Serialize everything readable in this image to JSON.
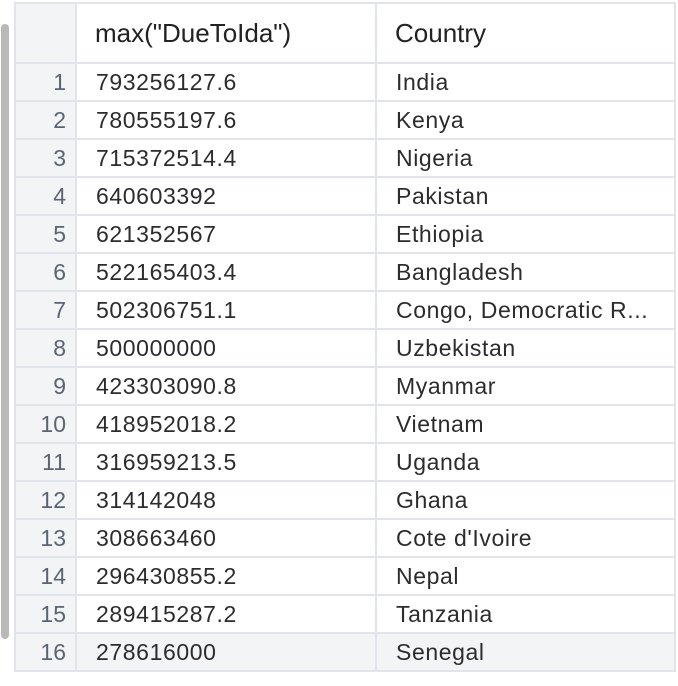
{
  "table": {
    "columns": [
      "",
      "max(\"DueToIda\")",
      "Country"
    ],
    "rows": [
      {
        "index": "1",
        "due": "793256127.6",
        "country": "India"
      },
      {
        "index": "2",
        "due": "780555197.6",
        "country": "Kenya"
      },
      {
        "index": "3",
        "due": "715372514.4",
        "country": "Nigeria"
      },
      {
        "index": "4",
        "due": "640603392",
        "country": "Pakistan"
      },
      {
        "index": "5",
        "due": "621352567",
        "country": "Ethiopia"
      },
      {
        "index": "6",
        "due": "522165403.4",
        "country": "Bangladesh"
      },
      {
        "index": "7",
        "due": "502306751.1",
        "country": "Congo, Democratic R..."
      },
      {
        "index": "8",
        "due": "500000000",
        "country": "Uzbekistan"
      },
      {
        "index": "9",
        "due": "423303090.8",
        "country": "Myanmar"
      },
      {
        "index": "10",
        "due": "418952018.2",
        "country": "Vietnam"
      },
      {
        "index": "11",
        "due": "316959213.5",
        "country": "Uganda"
      },
      {
        "index": "12",
        "due": "314142048",
        "country": "Ghana"
      },
      {
        "index": "13",
        "due": "308663460",
        "country": "Cote d'Ivoire"
      },
      {
        "index": "14",
        "due": "296430855.2",
        "country": "Nepal"
      },
      {
        "index": "15",
        "due": "289415287.2",
        "country": "Tanzania"
      },
      {
        "index": "16",
        "due": "278616000",
        "country": "Senegal"
      }
    ]
  }
}
